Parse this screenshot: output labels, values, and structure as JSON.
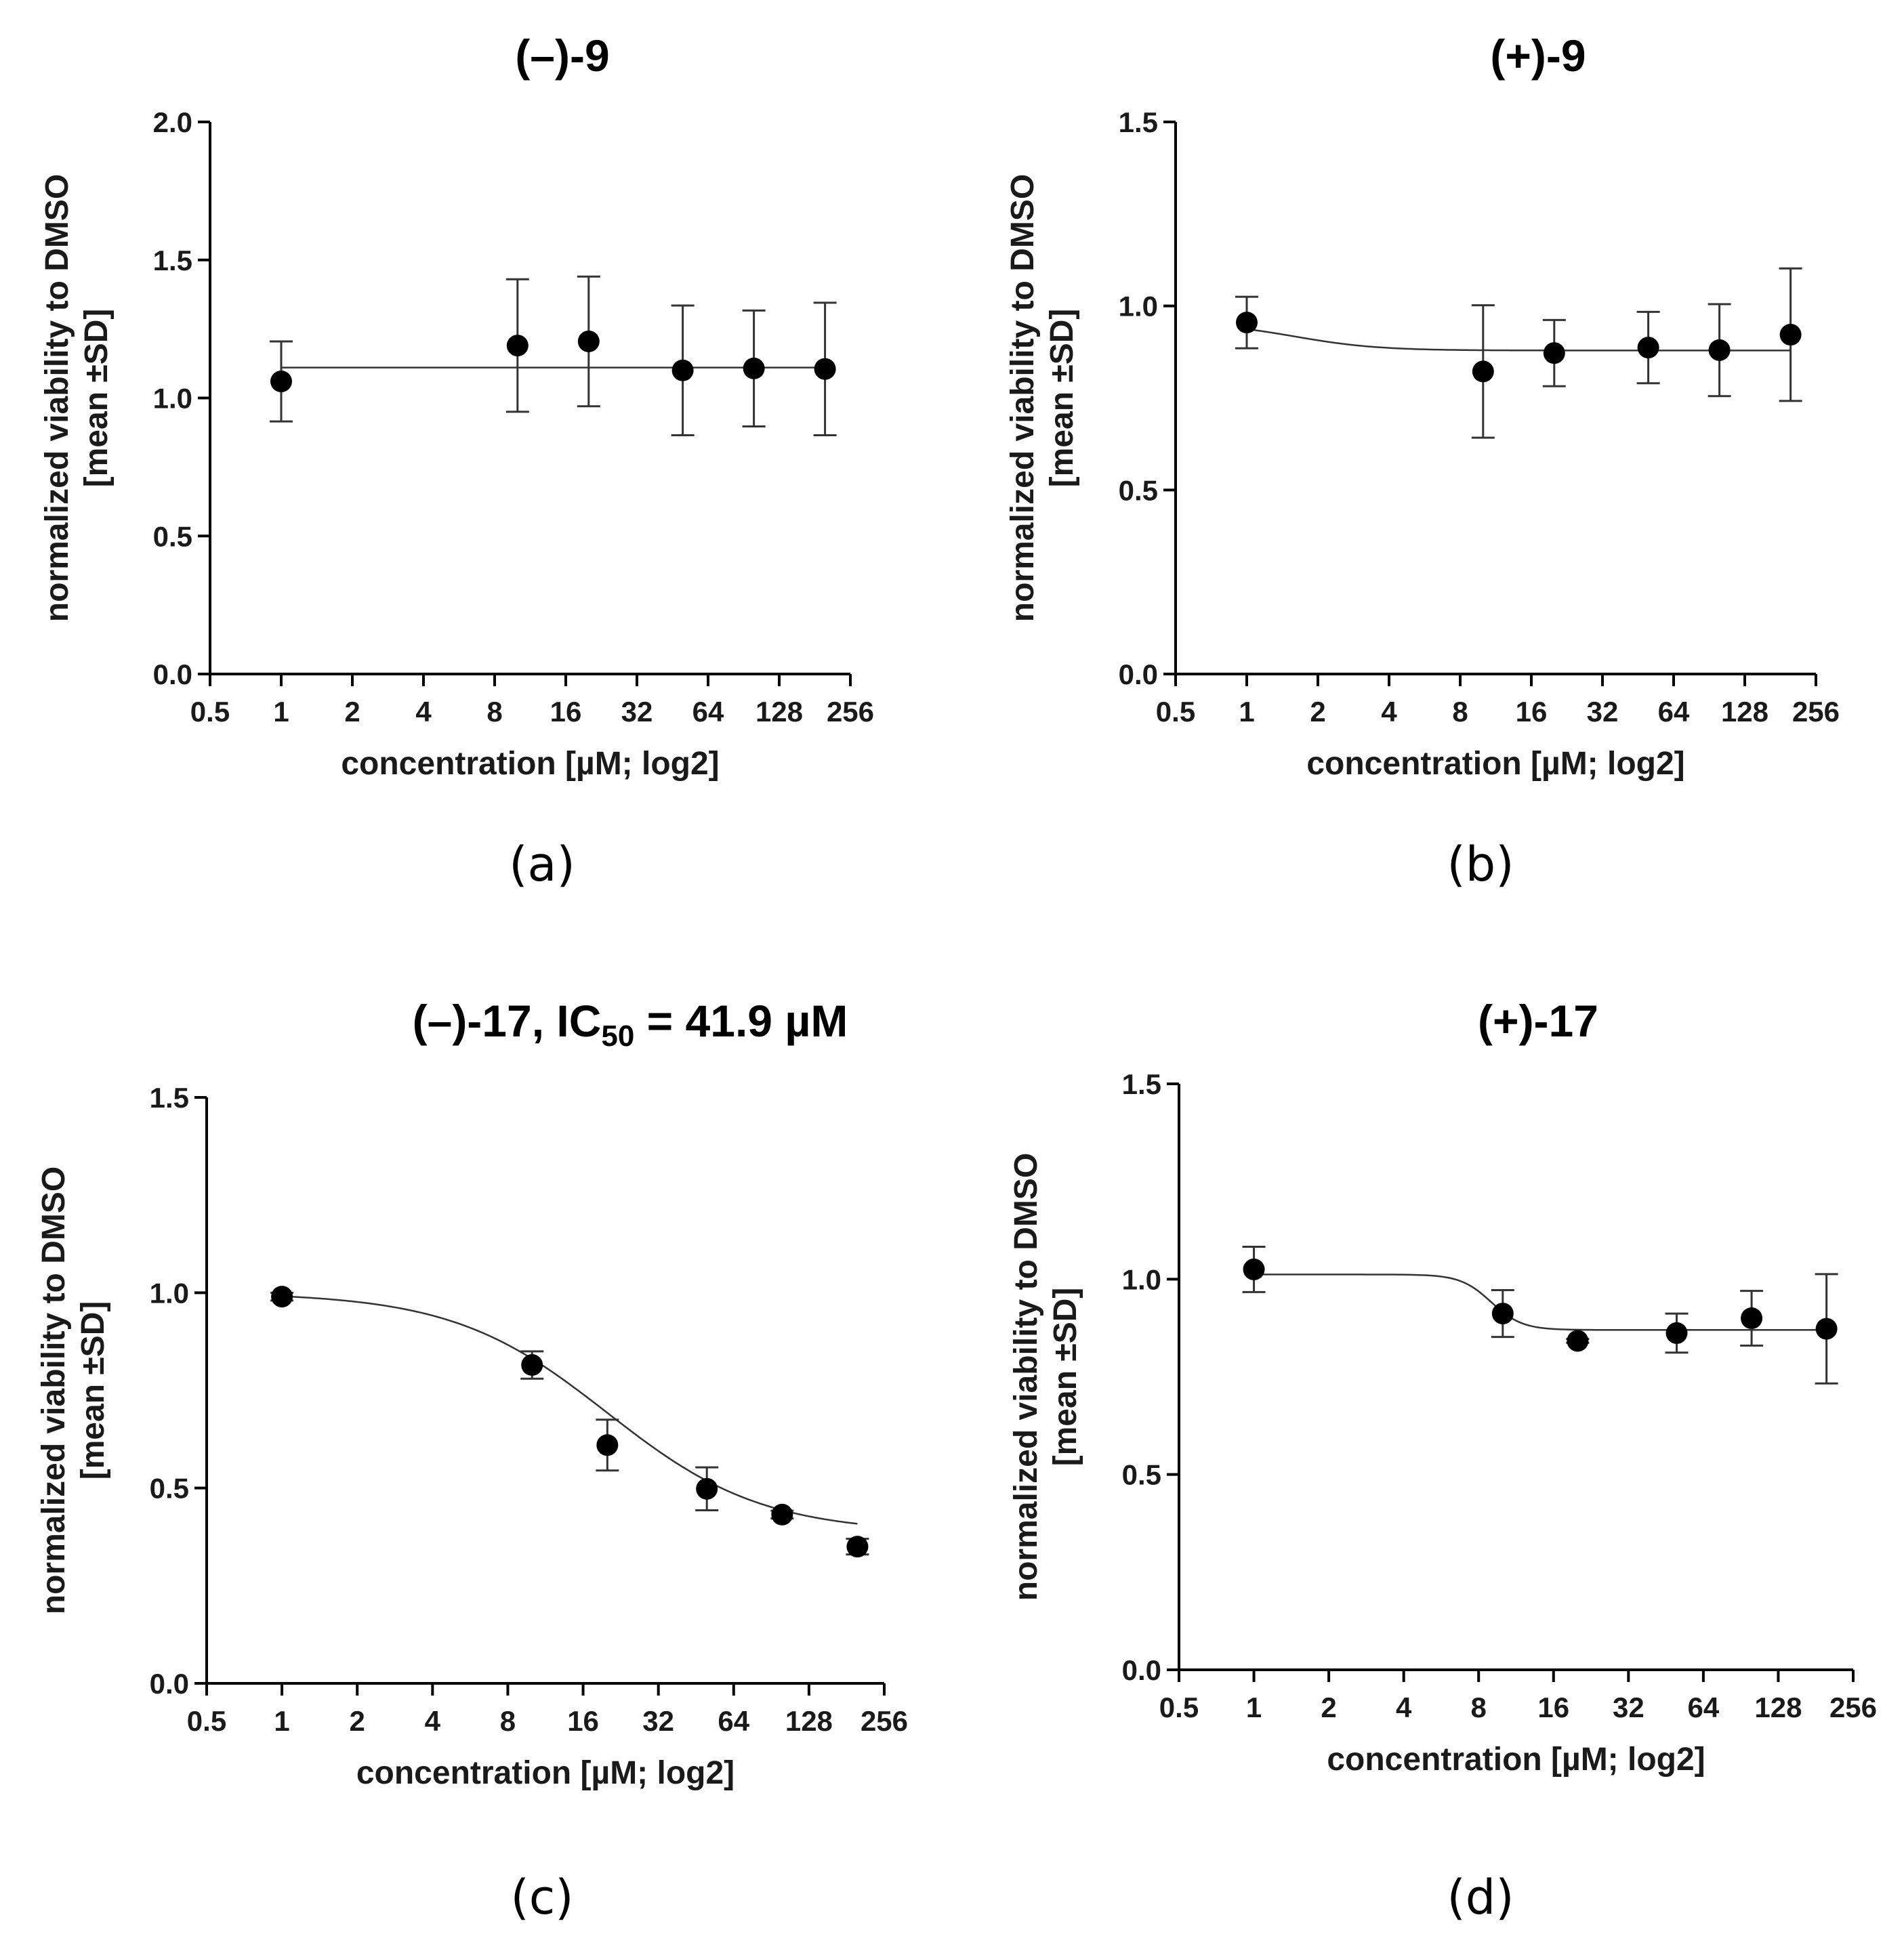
{
  "chart_data": [
    {
      "type": "scatter",
      "panel_label": "(a)",
      "title_pre": "(–)-9",
      "title_sub": "",
      "title_post": "",
      "xlabel": "concentration [µM; log2]",
      "ylabel": [
        "normalized viability to DMSO",
        "[mean ±SD]"
      ],
      "xscale": "log2",
      "xlim": [
        0.5,
        256
      ],
      "xticks": [
        0.5,
        1,
        2,
        4,
        8,
        16,
        32,
        64,
        128,
        256
      ],
      "xtick_labels": [
        "0.5",
        "1",
        "2",
        "4",
        "8",
        "16",
        "32",
        "64",
        "128",
        "256"
      ],
      "ylim": [
        0,
        2.0
      ],
      "yticks": [
        0,
        0.5,
        1.0,
        1.5,
        2.0
      ],
      "ytick_labels": [
        "0.0",
        "0.5",
        "1.0",
        "1.5",
        "2.0"
      ],
      "x": [
        1,
        10,
        20,
        50,
        100,
        200
      ],
      "y": [
        1.06,
        1.19,
        1.205,
        1.1,
        1.107,
        1.105
      ],
      "sd": [
        0.145,
        0.24,
        0.235,
        0.235,
        0.21,
        0.24
      ],
      "fit": {
        "model": "constant",
        "top": 1.11
      }
    },
    {
      "type": "scatter",
      "panel_label": "(b)",
      "title_pre": "(+)-9",
      "title_sub": "",
      "title_post": "",
      "xlabel": "concentration [µM; log2]",
      "ylabel": [
        "normalized viability to DMSO",
        "[mean ±SD]"
      ],
      "xscale": "log2",
      "xlim": [
        0.5,
        256
      ],
      "xticks": [
        0.5,
        1,
        2,
        4,
        8,
        16,
        32,
        64,
        128,
        256
      ],
      "xtick_labels": [
        "0.5",
        "1",
        "2",
        "4",
        "8",
        "16",
        "32",
        "64",
        "128",
        "256"
      ],
      "ylim": [
        0,
        1.5
      ],
      "yticks": [
        0,
        0.5,
        1.0,
        1.5
      ],
      "ytick_labels": [
        "0.0",
        "0.5",
        "1.0",
        "1.5"
      ],
      "x": [
        1,
        10,
        20,
        50,
        100,
        200
      ],
      "y": [
        0.955,
        0.822,
        0.872,
        0.887,
        0.88,
        0.922
      ],
      "sd": [
        0.07,
        0.18,
        0.09,
        0.097,
        0.125,
        0.18
      ],
      "fit": {
        "model": "sigmoid",
        "top": 0.955,
        "bottom": 0.879,
        "ic50": 1.6,
        "hill": 2.5
      }
    },
    {
      "type": "scatter",
      "panel_label": "(c)",
      "title_pre": "(–)-17, IC",
      "title_sub": "50",
      "title_post": " = 41.9 µM",
      "xlabel": "concentration [µM; log2]",
      "ylabel": [
        "normalized viability to DMSO",
        "[mean ±SD]"
      ],
      "xscale": "log2",
      "xlim": [
        0.5,
        256
      ],
      "xticks": [
        0.5,
        1,
        2,
        4,
        8,
        16,
        32,
        64,
        128,
        256
      ],
      "xtick_labels": [
        "0.5",
        "1",
        "2",
        "4",
        "8",
        "16",
        "32",
        "64",
        "128",
        "256"
      ],
      "ylim": [
        0,
        1.5
      ],
      "yticks": [
        0,
        0.5,
        1.0,
        1.5
      ],
      "ytick_labels": [
        "0.0",
        "0.5",
        "1.0",
        "1.5"
      ],
      "x": [
        1,
        10,
        20,
        50,
        100,
        200
      ],
      "y": [
        0.99,
        0.815,
        0.61,
        0.498,
        0.432,
        0.35
      ],
      "sd": [
        0.01,
        0.035,
        0.065,
        0.055,
        0.01,
        0.02
      ],
      "fit": {
        "model": "sigmoid",
        "top": 1.0,
        "bottom": 0.385,
        "ic50": 20,
        "hill": 1.4
      }
    },
    {
      "type": "scatter",
      "panel_label": "(d)",
      "title_pre": "(+)-17",
      "title_sub": "",
      "title_post": "",
      "xlabel": "concentration [µM; log2]",
      "ylabel": [
        "normalized viability to DMSO",
        "[mean ±SD]"
      ],
      "xscale": "log2",
      "xlim": [
        0.5,
        256
      ],
      "xticks": [
        0.5,
        1,
        2,
        4,
        8,
        16,
        32,
        64,
        128,
        256
      ],
      "xtick_labels": [
        "0.5",
        "1",
        "2",
        "4",
        "8",
        "16",
        "32",
        "64",
        "128",
        "256"
      ],
      "ylim": [
        0,
        1.5
      ],
      "yticks": [
        0,
        0.5,
        1.0,
        1.5
      ],
      "ytick_labels": [
        "0.0",
        "0.5",
        "1.0",
        "1.5"
      ],
      "x": [
        1,
        10,
        20,
        50,
        100,
        200
      ],
      "y": [
        1.025,
        0.912,
        0.842,
        0.862,
        0.9,
        0.873
      ],
      "sd": [
        0.058,
        0.06,
        0.005,
        0.05,
        0.07,
        0.14
      ],
      "fit": {
        "model": "sigmoid",
        "top": 1.012,
        "bottom": 0.87,
        "ic50": 9.0,
        "hill": 7
      }
    }
  ]
}
